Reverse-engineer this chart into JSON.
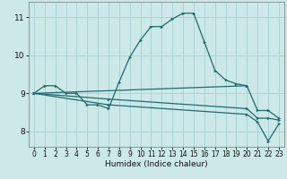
{
  "xlabel": "Humidex (Indice chaleur)",
  "xlim": [
    -0.5,
    23.5
  ],
  "ylim": [
    7.6,
    11.4
  ],
  "yticks": [
    8,
    9,
    10,
    11
  ],
  "xticks": [
    0,
    1,
    2,
    3,
    4,
    5,
    6,
    7,
    8,
    9,
    10,
    11,
    12,
    13,
    14,
    15,
    16,
    17,
    18,
    19,
    20,
    21,
    22,
    23
  ],
  "bg_color": "#cce8e8",
  "line_color": "#1f6b6b",
  "grid_color": "#aad4d4",
  "lines": [
    {
      "x": [
        0,
        1,
        2,
        3,
        4,
        5,
        6,
        7,
        8,
        9,
        10,
        11,
        12,
        13,
        14,
        15,
        16,
        17,
        18,
        19,
        20,
        21,
        22,
        23
      ],
      "y": [
        9.0,
        9.2,
        9.2,
        9.0,
        9.0,
        8.7,
        8.7,
        8.6,
        9.3,
        9.95,
        10.4,
        10.75,
        10.75,
        10.95,
        11.1,
        11.1,
        10.35,
        9.6,
        9.35,
        9.25,
        9.2,
        8.55,
        8.55,
        8.35
      ],
      "marker": true
    },
    {
      "x": [
        0,
        20
      ],
      "y": [
        9.0,
        9.2
      ],
      "marker": true
    },
    {
      "x": [
        0,
        7,
        20,
        21,
        22,
        23
      ],
      "y": [
        9.0,
        8.85,
        8.6,
        8.35,
        8.35,
        8.3
      ],
      "marker": true
    },
    {
      "x": [
        0,
        7,
        20,
        21,
        22,
        23
      ],
      "y": [
        9.0,
        8.7,
        8.45,
        8.25,
        7.75,
        8.2
      ],
      "marker": true
    }
  ]
}
